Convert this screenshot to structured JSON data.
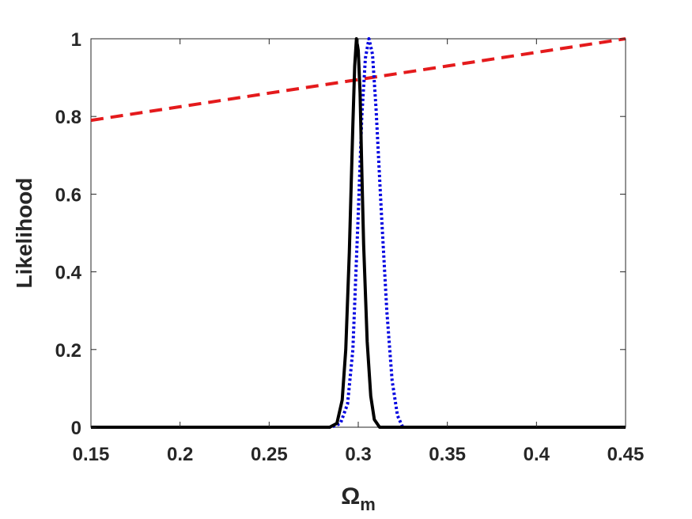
{
  "chart_data": {
    "type": "line",
    "title": "",
    "xlabel": "Ω",
    "xlabel_subscript": "m",
    "ylabel": "Likelihood",
    "xlim": [
      0.15,
      0.45
    ],
    "ylim": [
      0,
      1
    ],
    "xticks": [
      0.15,
      0.2,
      0.25,
      0.3,
      0.35,
      0.4,
      0.45
    ],
    "xtick_labels": [
      "0.15",
      "0.2",
      "0.25",
      "0.3",
      "0.35",
      "0.4",
      "0.45"
    ],
    "yticks": [
      0,
      0.2,
      0.4,
      0.6,
      0.8,
      1
    ],
    "ytick_labels": [
      "0",
      "0.2",
      "0.4",
      "0.6",
      "0.8",
      "1"
    ],
    "grid": false,
    "legend": "none",
    "series": [
      {
        "style": "dashed",
        "color": "#e41a1c",
        "x": [
          0.15,
          0.2,
          0.25,
          0.3,
          0.35,
          0.4,
          0.45
        ],
        "y": [
          0.79,
          0.825,
          0.86,
          0.895,
          0.93,
          0.965,
          1.0
        ]
      },
      {
        "style": "dotted",
        "color": "#0000e0",
        "x": [
          0.15,
          0.285,
          0.29,
          0.294,
          0.297,
          0.3,
          0.302,
          0.304,
          0.306,
          0.308,
          0.31,
          0.313,
          0.316,
          0.319,
          0.322,
          0.325,
          0.33,
          0.45
        ],
        "y": [
          0,
          0,
          0.01,
          0.06,
          0.2,
          0.55,
          0.8,
          0.95,
          1.0,
          0.96,
          0.82,
          0.55,
          0.3,
          0.12,
          0.03,
          0,
          0,
          0
        ]
      },
      {
        "style": "solid",
        "color": "#000000",
        "x": [
          0.15,
          0.284,
          0.288,
          0.291,
          0.293,
          0.295,
          0.297,
          0.298,
          0.299,
          0.3,
          0.301,
          0.302,
          0.303,
          0.305,
          0.307,
          0.309,
          0.312,
          0.316,
          0.45
        ],
        "y": [
          0,
          0,
          0.01,
          0.07,
          0.2,
          0.45,
          0.78,
          0.93,
          1.0,
          0.97,
          0.86,
          0.66,
          0.47,
          0.22,
          0.08,
          0.02,
          0,
          0,
          0
        ]
      }
    ]
  }
}
